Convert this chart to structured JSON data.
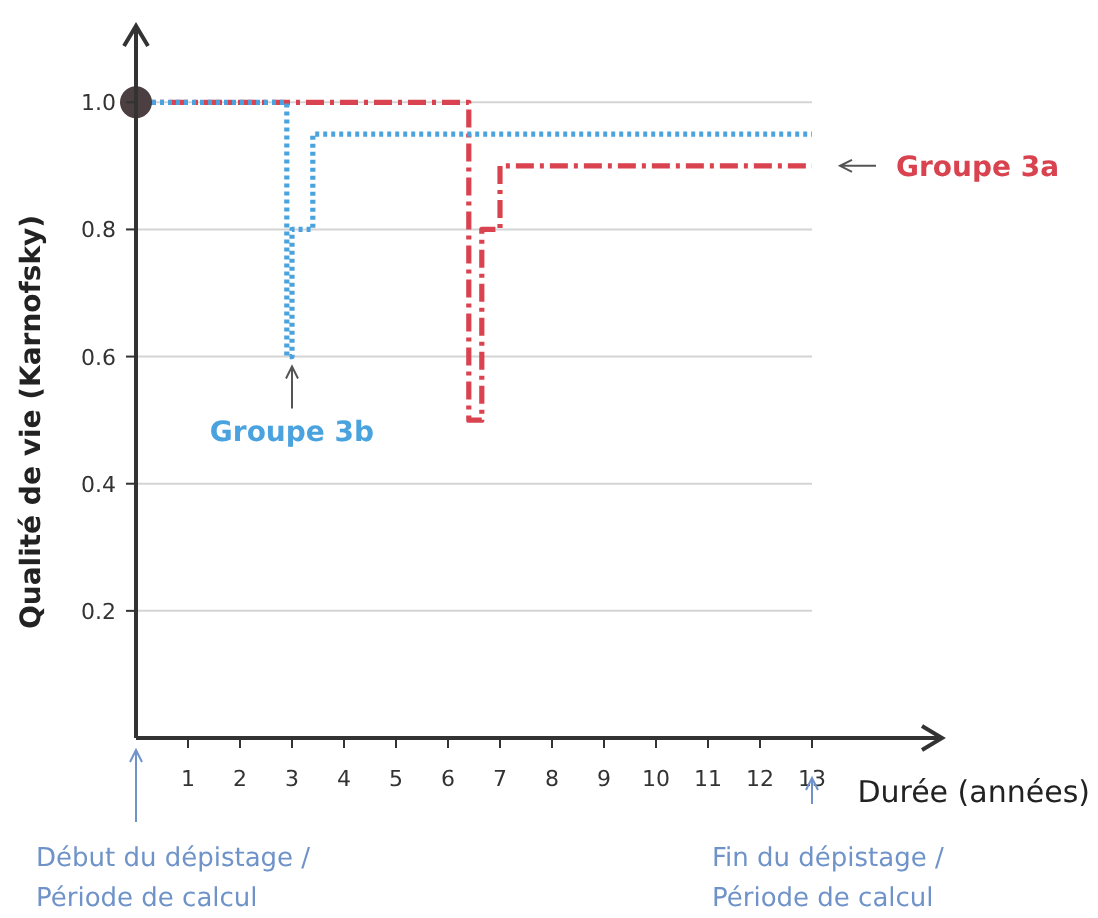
{
  "chart_data": {
    "type": "step",
    "ylabel": "Qualité de vie (Karnofsky)",
    "xlabel": "Durée (années)",
    "xlim": [
      0,
      15.5
    ],
    "xticks": [
      1,
      2,
      3,
      4,
      5,
      6,
      7,
      8,
      9,
      10,
      11,
      12,
      13
    ],
    "ylim": [
      0,
      1.12
    ],
    "yticks": [
      {
        "value": 0.2,
        "label": "0.2"
      },
      {
        "value": 0.4,
        "label": "0.4"
      },
      {
        "value": 0.6,
        "label": "0.6"
      },
      {
        "value": 0.8,
        "label": "0.8"
      },
      {
        "value": 1,
        "label": "1.0"
      }
    ],
    "grid": "y",
    "series": [
      {
        "color": "#d9434f",
        "line_style": "dashed",
        "x": [
          0,
          6.4,
          6.65,
          7.0,
          13
        ],
        "values": [
          1,
          0.5,
          0.8,
          0.9,
          0.9
        ]
      },
      {
        "color": "#4aa3df",
        "line_style": "dotted",
        "x": [
          0,
          2.9,
          3.0,
          3.4,
          13
        ],
        "values": [
          1,
          0.6,
          0.8,
          0.95,
          0.95
        ]
      },
      {
        "type": "scatter",
        "marker": "circle",
        "color": "#4b3f42",
        "x": [
          0
        ],
        "values": [
          1
        ]
      }
    ],
    "annotations": [
      {
        "text": "Groupe 3a",
        "x": 13,
        "y": 0.9
      },
      {
        "text": "Groupe 3b",
        "x": 3,
        "y": 0.6
      },
      "Début du dépistage / Période de calcul",
      "Fin du dépistage / Période de calcul"
    ]
  }
}
